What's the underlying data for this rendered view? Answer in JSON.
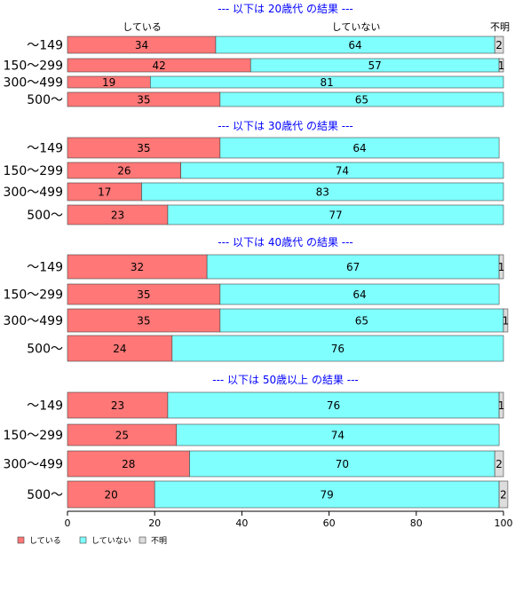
{
  "chart_data": {
    "type": "bar",
    "orientation": "horizontal",
    "stacked": true,
    "series_names": [
      "している",
      "していない",
      "不明"
    ],
    "colors": [
      "#ff7777",
      "#80ffff",
      "#dddddd"
    ],
    "top_labels": [
      "している",
      "していない",
      "不明"
    ],
    "xlim": [
      0,
      100
    ],
    "xticks": [
      0,
      20,
      40,
      60,
      80,
      100
    ],
    "groups": [
      {
        "title": "--- 以下は 20歳代 の結果 ---",
        "categories": [
          "～149",
          "150～299",
          "300～499",
          "500～"
        ],
        "values": [
          [
            34,
            64,
            2
          ],
          [
            42,
            57,
            1
          ],
          [
            19,
            81,
            0
          ],
          [
            35,
            65,
            0
          ]
        ]
      },
      {
        "title": "--- 以下は 30歳代 の結果 ---",
        "categories": [
          "～149",
          "150～299",
          "300～499",
          "500～"
        ],
        "values": [
          [
            35,
            64,
            0
          ],
          [
            26,
            74,
            0
          ],
          [
            17,
            83,
            0
          ],
          [
            23,
            77,
            0
          ]
        ]
      },
      {
        "title": "--- 以下は 40歳代 の結果 ---",
        "categories": [
          "～149",
          "150～299",
          "300～499",
          "500～"
        ],
        "values": [
          [
            32,
            67,
            1
          ],
          [
            35,
            64,
            0
          ],
          [
            35,
            65,
            1
          ],
          [
            24,
            76,
            0
          ]
        ]
      },
      {
        "title": "--- 以下は 50歳以上 の結果 ---",
        "categories": [
          "～149",
          "150～299",
          "300～499",
          "500～"
        ],
        "values": [
          [
            23,
            76,
            1
          ],
          [
            25,
            74,
            0
          ],
          [
            28,
            70,
            2
          ],
          [
            20,
            79,
            2
          ]
        ]
      }
    ]
  }
}
